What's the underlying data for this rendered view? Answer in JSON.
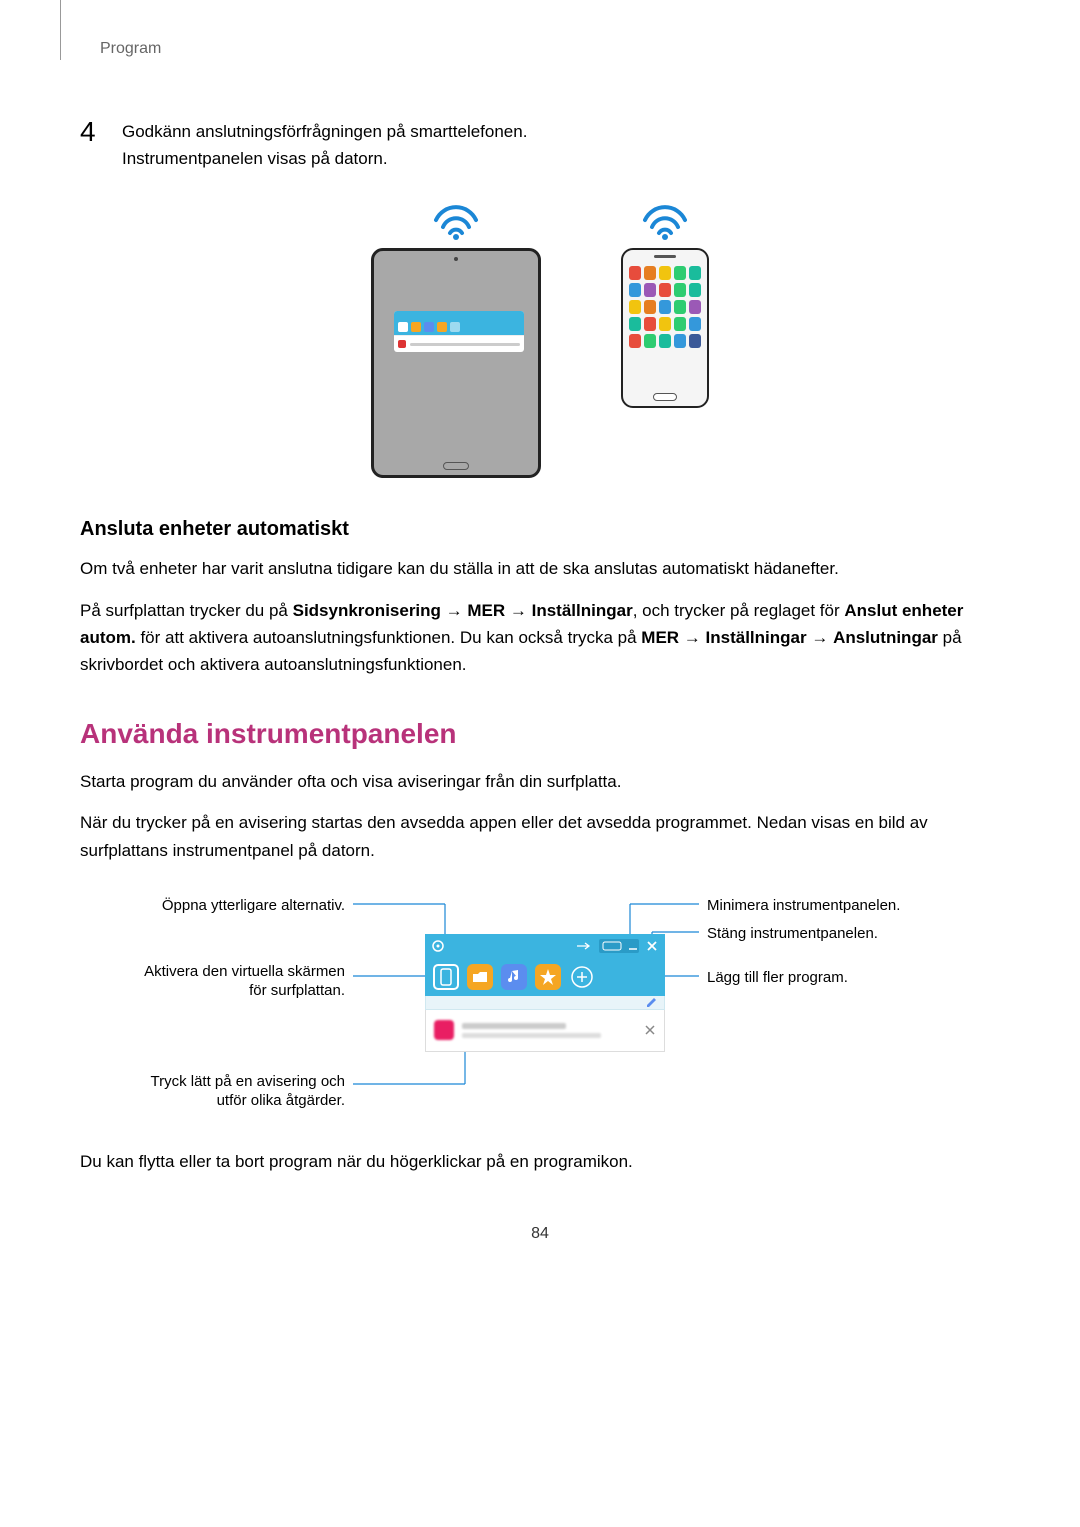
{
  "header": {
    "program": "Program"
  },
  "step": {
    "num": "4",
    "line1": "Godkänn anslutningsförfrågningen på smarttelefonen.",
    "line2": "Instrumentpanelen visas på datorn."
  },
  "colors": {
    "wifi": "#1b87d6",
    "panel_bg": "#3bb4e0",
    "accent": "#b8327a",
    "folder": "#f5a623",
    "music": "#5b8def",
    "star": "#f5a623",
    "phone_icons": [
      "#e74c3c",
      "#e67e22",
      "#f1c40f",
      "#2ecc71",
      "#1abc9c",
      "#3498db",
      "#9b59b6",
      "#e74c3c",
      "#2ecc71",
      "#1abc9c",
      "#f1c40f",
      "#e67e22",
      "#3498db",
      "#2ecc71",
      "#9b59b6",
      "#1abc9c",
      "#e74c3c",
      "#f1c40f",
      "#2ecc71",
      "#3498db",
      "#e74c3c",
      "#2ecc71",
      "#1abc9c",
      "#3498db",
      "#3b5998"
    ]
  },
  "auto": {
    "heading": "Ansluta enheter automatiskt",
    "p1": "Om två enheter har varit anslutna tidigare kan du ställa in att de ska anslutas automatiskt hädanefter.",
    "p2_a": "På surfplattan trycker du på ",
    "p2_b": "Sidsynkronisering",
    "p2_arrow1": " → ",
    "p2_c": "MER",
    "p2_arrow2": " → ",
    "p2_d": "Inställningar",
    "p2_e": ", och trycker på reglaget för ",
    "p2_f": "Anslut enheter autom.",
    "p2_g": " för att aktivera autoanslutningsfunktionen. Du kan också trycka på ",
    "p2_h": "MER",
    "p2_arrow3": " → ",
    "p2_i": "Inställningar",
    "p2_arrow4": " → ",
    "p2_j": "Anslutningar",
    "p2_k": " på skrivbordet och aktivera autoanslutningsfunktionen."
  },
  "use": {
    "heading": "Använda instrumentpanelen",
    "p1": "Starta program du använder ofta och visa aviseringar från din surfplatta.",
    "p2": "När du trycker på en avisering startas den avsedda appen eller det avsedda programmet. Nedan visas en bild av surfplattans instrumentpanel på datorn.",
    "p3": "Du kan flytta eller ta bort program när du högerklickar på en programikon."
  },
  "callouts": {
    "left1": "Öppna ytterligare alternativ.",
    "left2a": "Aktivera den virtuella skärmen",
    "left2b": "för surfplattan.",
    "left3a": "Tryck lätt på en avisering och",
    "left3b": "utför olika åtgärder.",
    "right1": "Minimera instrumentpanelen.",
    "right2": "Stäng instrumentpanelen.",
    "right3": "Lägg till fler program."
  },
  "page_num": "84",
  "diagram_line_color": "#1b87d6"
}
